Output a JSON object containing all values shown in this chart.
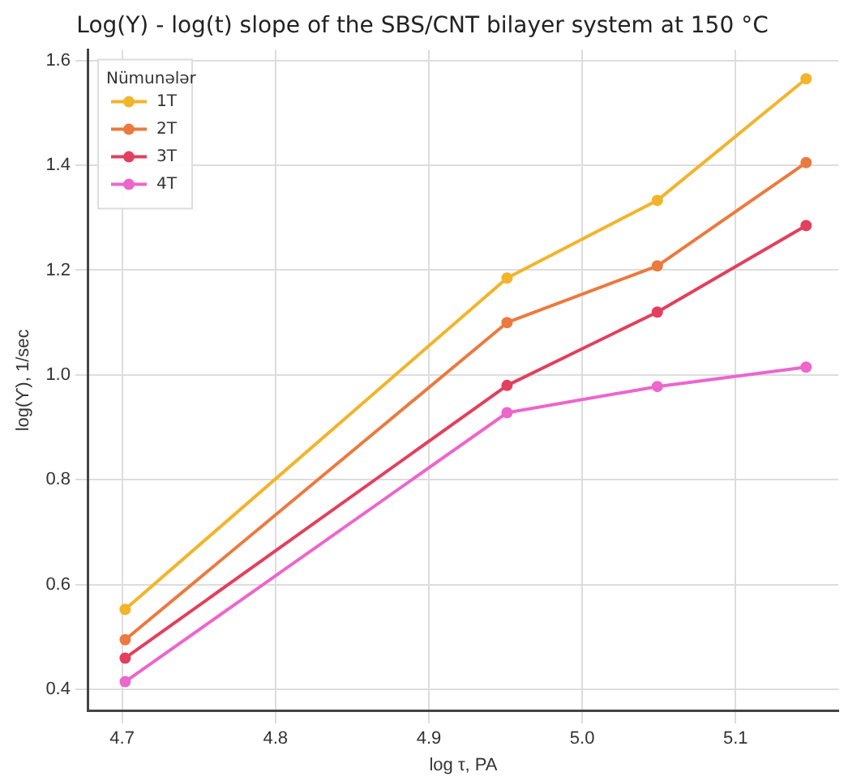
{
  "chart_data": {
    "type": "line",
    "title": "Log(Y) - log(t) slope of the SBS/CNT bilayer system at 150 °C",
    "xlabel": "log τ, PA",
    "ylabel": "log(ϒ), 1/sec",
    "legend_title": "Nümunələr",
    "x": [
      4.702,
      4.951,
      5.049,
      5.146
    ],
    "series": [
      {
        "name": "1T",
        "color": "#f2b42a",
        "values": [
          0.553,
          1.185,
          1.333,
          1.565
        ]
      },
      {
        "name": "2T",
        "color": "#eb7a3e",
        "values": [
          0.495,
          1.1,
          1.208,
          1.405
        ]
      },
      {
        "name": "3T",
        "color": "#e2405e",
        "values": [
          0.46,
          0.98,
          1.12,
          1.285
        ]
      },
      {
        "name": "4T",
        "color": "#ec66cc",
        "values": [
          0.415,
          0.928,
          0.978,
          1.015
        ]
      }
    ],
    "xlim": [
      4.678,
      5.167
    ],
    "xticks": [
      4.7,
      4.8,
      4.9,
      {
        "value": 5,
        "label": "5.0"
      },
      5.1
    ],
    "ylim": [
      0.36,
      1.62
    ],
    "yticks": [
      0.4,
      0.6,
      0.8,
      {
        "value": 1,
        "label": "1.0"
      },
      1.2,
      1.4,
      1.6
    ],
    "grid": true,
    "legend": "top left",
    "marker": "circle",
    "line_style": "solid"
  }
}
